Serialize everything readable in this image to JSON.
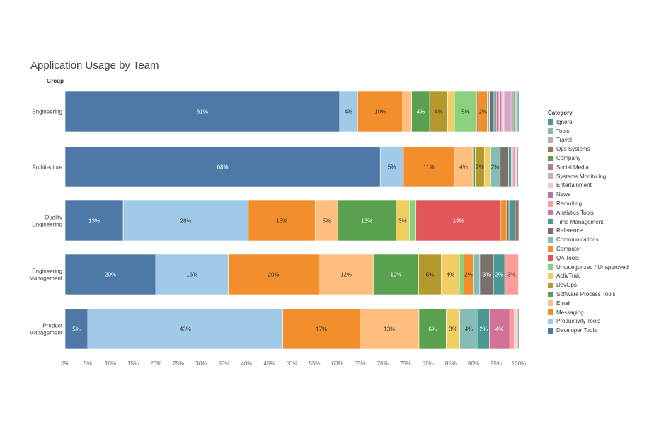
{
  "chart_data": {
    "type": "bar",
    "orientation": "horizontal",
    "stacked": "100%",
    "title": "Application Usage by Team",
    "ylabel": "Group",
    "xlim": [
      0,
      100
    ],
    "x_ticks": [
      "0%",
      "5%",
      "10%",
      "15%",
      "20%",
      "25%",
      "30%",
      "35%",
      "40%",
      "45%",
      "50%",
      "55%",
      "60%",
      "65%",
      "70%",
      "75%",
      "80%",
      "85%",
      "90%",
      "95%",
      "100%"
    ],
    "grid": false,
    "legend_title": "Category",
    "legend_position": "right",
    "categories": [
      "Engineering",
      "Architecture",
      "Quality Engineering",
      "Engineering Management",
      "Product Management"
    ],
    "series": [
      {
        "name": "Developer Tools",
        "color": "#4e79a7",
        "values": [
          61,
          68,
          13,
          20,
          5
        ],
        "labels": [
          "61%",
          "68%",
          "13%",
          "20%",
          "5%"
        ]
      },
      {
        "name": "Productivity Tools",
        "color": "#a0cbe8",
        "values": [
          4,
          5,
          28,
          16,
          43
        ],
        "labels": [
          "4%",
          "5%",
          "28%",
          "16%",
          "43%"
        ]
      },
      {
        "name": "Messaging",
        "color": "#f28e2b",
        "values": [
          10,
          11,
          15,
          20,
          17
        ],
        "labels": [
          "10%",
          "11%",
          "15%",
          "20%",
          "17%"
        ]
      },
      {
        "name": "Email",
        "color": "#ffbe7d",
        "values": [
          2,
          4,
          5,
          12,
          13
        ],
        "labels": [
          "",
          "4%",
          "5%",
          "12%",
          "13%"
        ]
      },
      {
        "name": "Software Process Tools",
        "color": "#59a14f",
        "values": [
          4,
          0.5,
          13,
          10,
          6
        ],
        "labels": [
          "4%",
          "",
          "13%",
          "10%",
          "6%"
        ]
      },
      {
        "name": "DevOps",
        "color": "#b6992d",
        "values": [
          4,
          2,
          0,
          5,
          0
        ],
        "labels": [
          "4%",
          "2%",
          "",
          "5%",
          ""
        ]
      },
      {
        "name": "ActivTrak",
        "color": "#f1ce63",
        "values": [
          1.5,
          1.2,
          3,
          4,
          3
        ],
        "labels": [
          "",
          "",
          "3%",
          "4%",
          "3%"
        ]
      },
      {
        "name": "Uncategorized / Unapproved",
        "color": "#8cd17d",
        "values": [
          5,
          0,
          1.5,
          1,
          0
        ],
        "labels": [
          "5%",
          "",
          "",
          "",
          ""
        ]
      },
      {
        "name": "QA Tools",
        "color": "#e15759",
        "values": [
          0.3,
          0,
          19,
          0,
          0
        ],
        "labels": [
          "",
          "",
          "19%",
          "",
          ""
        ]
      },
      {
        "name": "Computer",
        "color": "#f28e2b",
        "values": [
          2,
          0,
          1.3,
          2,
          0
        ],
        "labels": [
          "2%",
          "",
          "",
          "2%",
          ""
        ]
      },
      {
        "name": "Communications",
        "color": "#86bcb6",
        "values": [
          0.5,
          2.2,
          0,
          1.5,
          4
        ],
        "labels": [
          "",
          "2%",
          "",
          "",
          "4%"
        ]
      },
      {
        "name": "Reference",
        "color": "#79706e",
        "values": [
          1,
          1.8,
          0.5,
          3,
          0
        ],
        "labels": [
          "",
          "",
          "",
          "3%",
          ""
        ]
      },
      {
        "name": "Time Management",
        "color": "#499894",
        "values": [
          0.5,
          0.6,
          1.4,
          2.5,
          2.5
        ],
        "labels": [
          "",
          "",
          "",
          "2%",
          "2%"
        ]
      },
      {
        "name": "Analytics Tools",
        "color": "#d37295",
        "values": [
          0.4,
          0.2,
          0,
          0,
          4.5
        ],
        "labels": [
          "",
          "",
          "",
          "",
          "4%"
        ]
      },
      {
        "name": "Recruiting",
        "color": "#ff9d9a",
        "values": [
          0.3,
          0.2,
          0,
          3,
          1
        ],
        "labels": [
          "",
          "",
          "",
          "3%",
          ""
        ]
      },
      {
        "name": "News",
        "color": "#b07aa1",
        "values": [
          0.5,
          0.3,
          0,
          0,
          0
        ],
        "labels": [
          "",
          "",
          "",
          "",
          ""
        ]
      },
      {
        "name": "Entertainment",
        "color": "#fabfd2",
        "values": [
          0.5,
          0.2,
          0,
          0,
          0.5
        ],
        "labels": [
          "",
          "",
          "",
          "",
          ""
        ]
      },
      {
        "name": "Systems Monitoring",
        "color": "#d4a6c8",
        "values": [
          1.6,
          0.2,
          0,
          0,
          0
        ],
        "labels": [
          "",
          "",
          "",
          "",
          ""
        ]
      },
      {
        "name": "Social Media",
        "color": "#b07aa1",
        "values": [
          0.3,
          0.1,
          0,
          0,
          0
        ],
        "labels": [
          "",
          "",
          "",
          "",
          ""
        ]
      },
      {
        "name": "Company",
        "color": "#59a14f",
        "values": [
          0.3,
          0.1,
          0,
          0,
          0.3
        ],
        "labels": [
          "",
          "",
          "",
          "",
          ""
        ]
      },
      {
        "name": "Ops Systems",
        "color": "#9c755f",
        "values": [
          0.3,
          0.2,
          0.8,
          0.1,
          0.2
        ],
        "labels": [
          "",
          "",
          "",
          "",
          ""
        ]
      },
      {
        "name": "Travel",
        "color": "#bab0ac",
        "values": [
          0.2,
          0.1,
          0,
          0,
          0
        ],
        "labels": [
          "",
          "",
          "",
          "",
          ""
        ]
      },
      {
        "name": "Tools",
        "color": "#86bcb6",
        "values": [
          0.3,
          0,
          0,
          0,
          0
        ],
        "labels": [
          "",
          "",
          "",
          "",
          ""
        ]
      },
      {
        "name": "Ignore",
        "color": "#499894",
        "values": [
          0.3,
          0,
          0,
          0,
          0
        ],
        "labels": [
          "",
          "",
          "",
          "",
          ""
        ]
      }
    ],
    "row_labels": [
      [
        "Engineering"
      ],
      [
        "Architecture"
      ],
      [
        "Quality",
        "Engineering"
      ],
      [
        "Engineering",
        "Management"
      ],
      [
        "Product",
        "Management"
      ]
    ],
    "legend_order": [
      "Ignore",
      "Tools",
      "Travel",
      "Ops Systems",
      "Company",
      "Social Media",
      "Systems Monitoring",
      "Entertainment",
      "News",
      "Recruiting",
      "Analytics Tools",
      "Time Management",
      "Reference",
      "Communications",
      "Computer",
      "QA Tools",
      "Uncategorized / Unapproved",
      "ActivTrak",
      "DevOps",
      "Software Process Tools",
      "Email",
      "Messaging",
      "Productivity Tools",
      "Developer Tools"
    ],
    "light_label_series": [
      "Developer Tools",
      "Software Process Tools",
      "QA Tools",
      "Time Management",
      "Reference",
      "Analytics Tools"
    ]
  }
}
